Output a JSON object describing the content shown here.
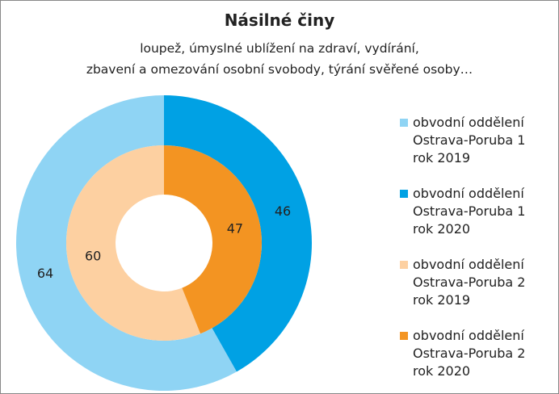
{
  "chart_data": {
    "type": "donut",
    "title": "Násilné činy",
    "subtitle": "loupež, úmyslné ublížení na zdraví, vydírání,\nzbavení a omezování osobní svobody, týrání svěřené osoby…",
    "rings": [
      {
        "categories": [
          "obvodní oddělení\nOstrava-Poruba 1\nrok 2019",
          "obvodní oddělení\nOstrava-Poruba 1\nrok 2020"
        ],
        "values": [
          64,
          46
        ],
        "colors": [
          "#8fd4f4",
          "#00a1e4"
        ]
      },
      {
        "categories": [
          "obvodní oddělení\nOstrava-Poruba 2\nrok 2019",
          "obvodní oddělení\nOstrava-Poruba 2\nrok 2020"
        ],
        "values": [
          60,
          47
        ],
        "colors": [
          "#fdd0a1",
          "#f39422"
        ]
      }
    ]
  }
}
